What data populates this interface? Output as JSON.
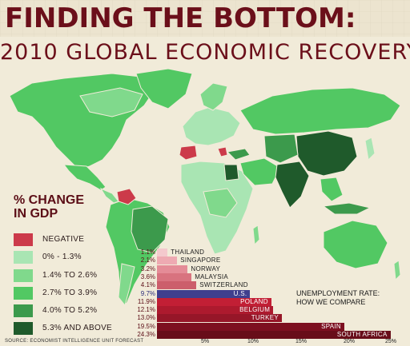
{
  "title": "FINDING THE BOTTOM:",
  "subtitle": "2010 GLOBAL ECONOMIC RECOVERY",
  "legend": {
    "title_line1": "% CHANGE",
    "title_line2": "IN GDP",
    "items": [
      {
        "label": "NEGATIVE",
        "color": "#cc3a4a"
      },
      {
        "label": "0% - 1.3%",
        "color": "#a9e5b3"
      },
      {
        "label": "1.4% TO 2.6%",
        "color": "#80d98c"
      },
      {
        "label": "2.7% TO 3.9%",
        "color": "#52c863"
      },
      {
        "label": "4.0% TO 5.2%",
        "color": "#3c9a4c"
      },
      {
        "label": "5.3% AND ABOVE",
        "color": "#1f5a2b"
      }
    ]
  },
  "source": "SOURCE: ECONOMIST INTELLIGENCE UNIT FORECAST",
  "unemployment_title_line1": "UNEMPLOYMENT RATE:",
  "unemployment_title_line2": "HOW WE COMPARE",
  "chart_data": {
    "type": "bar",
    "orientation": "horizontal",
    "title": "UNEMPLOYMENT RATE: HOW WE COMPARE",
    "categories": [
      "THAILAND",
      "SINGAPORE",
      "NORWAY",
      "MALAYSIA",
      "SWITZERLAND",
      "U.S.",
      "POLAND",
      "BELGIUM",
      "TURKEY",
      "SPAIN",
      "SOUTH AFRICA"
    ],
    "values": [
      1.1,
      2.1,
      3.2,
      3.6,
      4.1,
      9.7,
      11.9,
      12.1,
      13.0,
      19.5,
      24.3
    ],
    "value_labels": [
      "1.1%",
      "2.1%",
      "3.2%",
      "3.6%",
      "4.1%",
      "9.7%",
      "11.9%",
      "12.1%",
      "13.0%",
      "19.5%",
      "24.3%"
    ],
    "colors": [
      "#f4c9cd",
      "#eeaab2",
      "#e48c97",
      "#d8737f",
      "#cc5e6b",
      "#3f3f8e",
      "#c21f35",
      "#ad1a2e",
      "#961628",
      "#7d1020",
      "#680d19"
    ],
    "xlim": [
      0,
      25
    ],
    "xtick_values": [
      5,
      10,
      15,
      20,
      25
    ],
    "xtick_labels": [
      "5%",
      "10%",
      "15%",
      "20%",
      "25%"
    ],
    "grid": false,
    "legend": "none"
  }
}
